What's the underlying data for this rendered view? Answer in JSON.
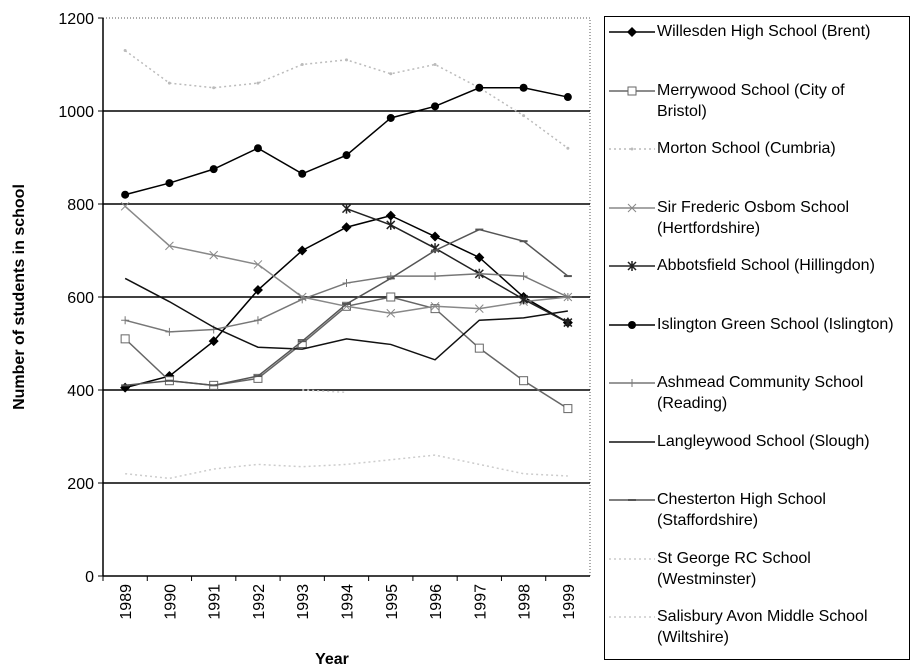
{
  "chart_data": {
    "type": "line",
    "x_label": "Year",
    "y_label": "Number of students in school",
    "categories": [
      "1989",
      "1990",
      "1991",
      "1992",
      "1993",
      "1994",
      "1995",
      "1996",
      "1997",
      "1998",
      "1999"
    ],
    "ylim": [
      0,
      1200
    ],
    "yticks": [
      0,
      200,
      400,
      600,
      800,
      1000,
      1200
    ],
    "grid": true,
    "series": [
      {
        "name": "Willesden High School (Brent)",
        "color": "#000000",
        "marker": "diamond",
        "values": [
          405,
          430,
          505,
          615,
          700,
          750,
          775,
          730,
          685,
          600,
          545
        ]
      },
      {
        "name": "Merrywood School (City of Bristol)",
        "color": "#666666",
        "marker": "square",
        "values": [
          510,
          420,
          410,
          425,
          500,
          580,
          600,
          575,
          490,
          420,
          360
        ]
      },
      {
        "name": "Morton School (Cumbria)",
        "color": "#bbbbbb",
        "marker": "dot",
        "values": [
          1130,
          1060,
          1050,
          1060,
          1100,
          1110,
          1080,
          1100,
          1050,
          990,
          920
        ]
      },
      {
        "name": "Sir Frederic Osbom School (Hertfordshire)",
        "color": "#888888",
        "marker": "x",
        "values": [
          795,
          710,
          690,
          670,
          600,
          580,
          565,
          580,
          575,
          590,
          600
        ]
      },
      {
        "name": "Abbotsfield School (Hillingdon)",
        "color": "#222222",
        "marker": "star",
        "values": [
          null,
          null,
          null,
          null,
          null,
          790,
          755,
          705,
          650,
          595,
          545
        ]
      },
      {
        "name": "Islington Green School (Islington)",
        "color": "#000000",
        "marker": "circle",
        "values": [
          820,
          845,
          875,
          920,
          865,
          905,
          985,
          1010,
          1050,
          1050,
          1030
        ]
      },
      {
        "name": "Ashmead Community School (Reading)",
        "color": "#777777",
        "marker": "plus",
        "values": [
          550,
          525,
          530,
          550,
          595,
          630,
          645,
          645,
          650,
          645,
          600
        ]
      },
      {
        "name": "Langleywood School (Slough)",
        "color": "#111111",
        "marker": "none",
        "values": [
          640,
          590,
          535,
          492,
          488,
          510,
          498,
          465,
          550,
          555,
          570
        ]
      },
      {
        "name": "Chesterton High School (Staffordshire)",
        "color": "#555555",
        "marker": "dash",
        "values": [
          410,
          420,
          410,
          430,
          505,
          585,
          640,
          700,
          745,
          720,
          645
        ]
      },
      {
        "name": "St George RC School (Westminster)",
        "color": "#cccccc",
        "marker": "none",
        "values": [
          220,
          210,
          230,
          240,
          235,
          240,
          250,
          260,
          240,
          220,
          215
        ]
      },
      {
        "name": "Salisbury Avon Middle School (Wiltshire)",
        "color": "#cccccc",
        "marker": "none",
        "values": [
          null,
          null,
          null,
          null,
          400,
          395,
          null,
          null,
          null,
          null,
          null
        ]
      }
    ]
  }
}
